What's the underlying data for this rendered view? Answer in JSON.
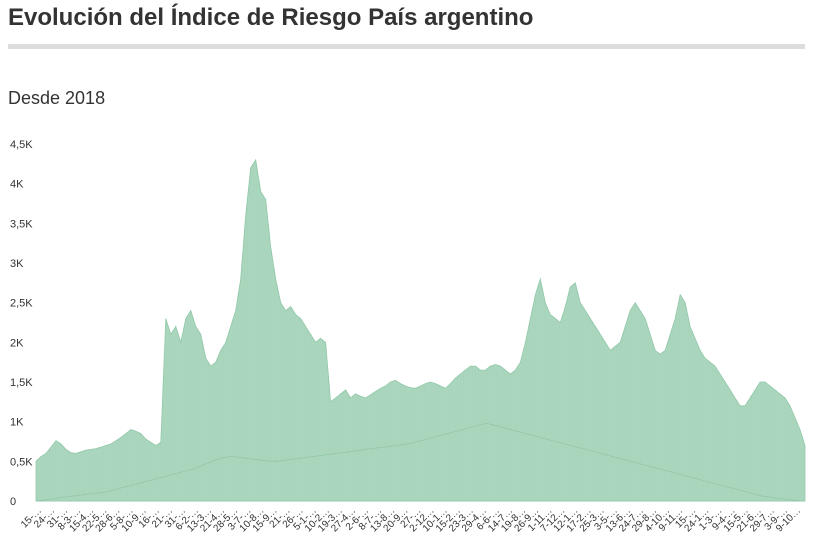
{
  "header": {
    "title": "Evolución del Índice de Riesgo País argentino",
    "subtitle": "Desde 2018"
  },
  "colors": {
    "area": "#a8d4bb",
    "area_stroke": "#8fc7a7",
    "rule": "#dddddd"
  },
  "chart_data": {
    "type": "area",
    "title": "Evolución del Índice de Riesgo País argentino",
    "subtitle": "Desde 2018",
    "xlabel": "",
    "ylabel": "",
    "ylim": [
      0,
      4500
    ],
    "y_ticks": [
      {
        "value": 0,
        "label": "0"
      },
      {
        "value": 500,
        "label": "0,5K"
      },
      {
        "value": 1000,
        "label": "1K"
      },
      {
        "value": 1500,
        "label": "1,5K"
      },
      {
        "value": 2000,
        "label": "2K"
      },
      {
        "value": 2500,
        "label": "2,5K"
      },
      {
        "value": 3000,
        "label": "3K"
      },
      {
        "value": 3500,
        "label": "3,5K"
      },
      {
        "value": 4000,
        "label": "4K"
      },
      {
        "value": 4500,
        "label": "4,5K"
      }
    ],
    "x_tick_labels": [
      "15-…",
      "24-…",
      "31-…",
      "8-3-…",
      "15-4…",
      "22-5…",
      "28-6…",
      "5-8-…",
      "10-9…",
      "16-…",
      "21-…",
      "31-…",
      "6-2-…",
      "13-3…",
      "21-4…",
      "28-5…",
      "3-7-…",
      "10-8…",
      "15-9…",
      "21-…",
      "26-…",
      "5-1-…",
      "10-2…",
      "19-3…",
      "27-4…",
      "2-6-…",
      "8-7-…",
      "13-8…",
      "20-9…",
      "27-…",
      "2-12…",
      "10-1…",
      "15-2…",
      "23-3…",
      "29-4…",
      "6-6-…",
      "14-7…",
      "19-8…",
      "26-9…",
      "1-11…",
      "7-12…",
      "12-1…",
      "17-2…",
      "25-3…",
      "3-5-…",
      "13-6…",
      "24-7…",
      "29-8…",
      "4-10…",
      "9-11…",
      "15-…",
      "24-1…",
      "1-3-…",
      "9-4-…",
      "15-5…",
      "21-6…",
      "29-7…",
      "3-9-…",
      "9-10…"
    ],
    "grid": false,
    "legend": "none",
    "series": [
      {
        "values": [
          500,
          560,
          600,
          680,
          760,
          720,
          650,
          610,
          600,
          620,
          640,
          650,
          660,
          680,
          700,
          720,
          760,
          800,
          850,
          900,
          880,
          850,
          780,
          740,
          700,
          740,
          2300,
          2100,
          2200,
          2000,
          2300,
          2400,
          2200,
          2100,
          1800,
          1700,
          1750,
          1900,
          2000,
          2200,
          2400,
          2800,
          3600,
          4200,
          4300,
          3900,
          3800,
          3200,
          2800,
          2500,
          2400,
          2450,
          2350,
          2300,
          2200,
          2100,
          2000,
          2050,
          2000,
          1250,
          1300,
          1350,
          1400,
          1300,
          1350,
          1320,
          1300,
          1340,
          1380,
          1420,
          1450,
          1500,
          1520,
          1480,
          1450,
          1430,
          1420,
          1450,
          1480,
          1500,
          1480,
          1450,
          1420,
          1480,
          1550,
          1600,
          1650,
          1700,
          1700,
          1650,
          1650,
          1700,
          1720,
          1700,
          1650,
          1600,
          1650,
          1750,
          2000,
          2300,
          2600,
          2800,
          2500,
          2350,
          2300,
          2250,
          2450,
          2700,
          2750,
          2500,
          2400,
          2300,
          2200,
          2100,
          2000,
          1900,
          1950,
          2000,
          2200,
          2400,
          2500,
          2400,
          2300,
          2100,
          1900,
          1850,
          1900,
          2100,
          2300,
          2600,
          2500,
          2200,
          2050,
          1900,
          1800,
          1750,
          1700,
          1600,
          1500,
          1400,
          1300,
          1200,
          1200,
          1300,
          1400,
          1500,
          1500,
          1450,
          1400,
          1350,
          1300,
          1200,
          1050,
          900,
          700
        ]
      },
      {
        "values": [
          0,
          10,
          20,
          30,
          40,
          50,
          60,
          70,
          80,
          90,
          100,
          110,
          120,
          140,
          160,
          180,
          200,
          220,
          240,
          260,
          280,
          300,
          320,
          340,
          360,
          380,
          400,
          430,
          460,
          490,
          520,
          540,
          560,
          560,
          550,
          540,
          530,
          520,
          510,
          500,
          500,
          510,
          520,
          530,
          540,
          550,
          560,
          570,
          580,
          590,
          600,
          610,
          620,
          630,
          640,
          650,
          660,
          670,
          680,
          690,
          700,
          710,
          720,
          740,
          760,
          780,
          800,
          820,
          840,
          860,
          880,
          900,
          920,
          940,
          960,
          980,
          960,
          940,
          920,
          900,
          880,
          860,
          840,
          820,
          800,
          780,
          760,
          740,
          720,
          700,
          680,
          660,
          640,
          620,
          600,
          580,
          560,
          540,
          520,
          500,
          480,
          460,
          440,
          420,
          400,
          380,
          360,
          340,
          320,
          300,
          280,
          260,
          240,
          220,
          200,
          180,
          160,
          140,
          120,
          100,
          80,
          60,
          50,
          40,
          30,
          20,
          10,
          5,
          0
        ]
      }
    ]
  }
}
